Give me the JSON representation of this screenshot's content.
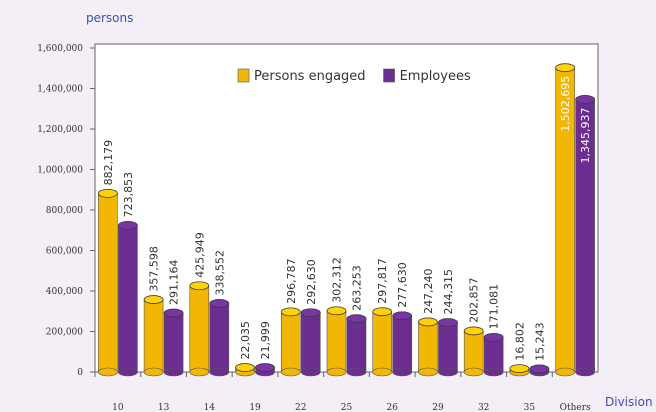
{
  "chart_data": {
    "type": "bar",
    "ylabel": "persons",
    "xlabel": "Division",
    "categories": [
      "10",
      "13",
      "14",
      "19",
      "22",
      "25",
      "26",
      "29",
      "32",
      "35",
      "Others"
    ],
    "series": [
      {
        "name": "Persons engaged",
        "color": "#f2b705",
        "values": [
          882179,
          357598,
          425949,
          22035,
          296787,
          302312,
          297817,
          247240,
          202857,
          16802,
          1502695
        ],
        "value_labels": [
          "882,179",
          "357,598",
          "425,949",
          "22,035",
          "296,787",
          "302,312",
          "297,817",
          "247,240",
          "202,857",
          "16,802",
          "1,502,695"
        ]
      },
      {
        "name": "Employees",
        "color": "#6b2d90",
        "values": [
          723853,
          291164,
          338552,
          21999,
          292630,
          263253,
          277630,
          244315,
          171081,
          15243,
          1345937
        ],
        "value_labels": [
          "723,853",
          "291,164",
          "338,552",
          "21,999",
          "292,630",
          "263,253",
          "277,630",
          "244,315",
          "171,081",
          "15,243",
          "1,345,937"
        ]
      }
    ],
    "ylim": [
      0,
      1600000
    ],
    "yticks": [
      0,
      {
        "value": 200000,
        "label": "200,000"
      },
      {
        "value": 400000,
        "label": "400,000"
      },
      {
        "value": 600000,
        "label": "600,000"
      },
      {
        "value": 800000,
        "label": "800,000"
      },
      {
        "value": 1000000,
        "label": "1,000,000"
      },
      {
        "value": 1200000,
        "label": "1,200,000"
      },
      {
        "value": 1400000,
        "label": "1,400,000"
      },
      {
        "value": 1600000,
        "label": "1,600,000"
      }
    ],
    "grid": false,
    "legend": "top-right"
  }
}
